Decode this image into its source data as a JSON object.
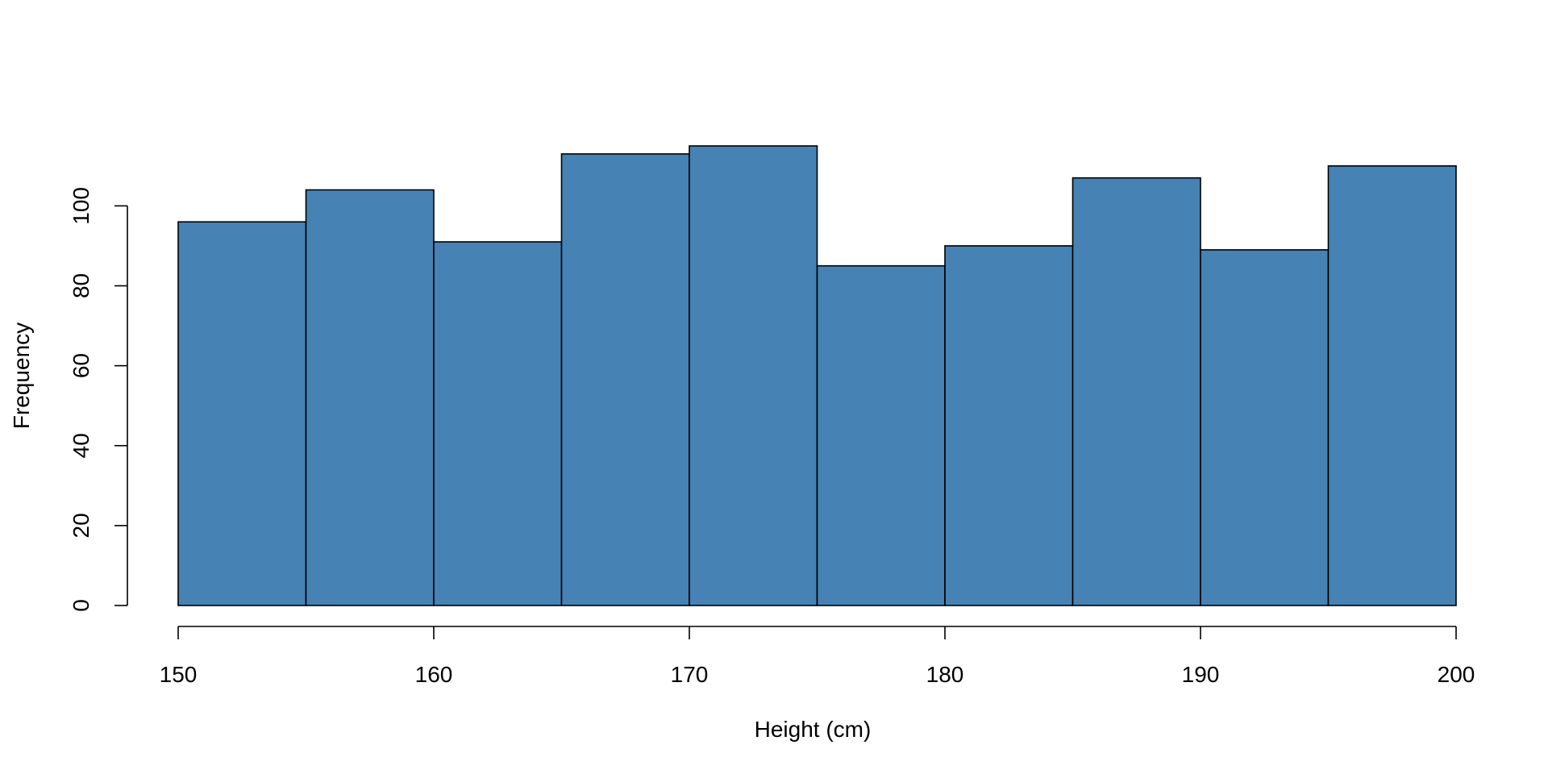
{
  "chart_data": {
    "type": "bar",
    "subtype": "histogram",
    "title": "",
    "xlabel": "Height (cm)",
    "ylabel": "Frequency",
    "bin_edges": [
      150,
      155,
      160,
      165,
      170,
      175,
      180,
      185,
      190,
      195,
      200
    ],
    "values": [
      96,
      104,
      91,
      113,
      115,
      85,
      90,
      107,
      89,
      110
    ],
    "xlim": [
      150,
      200
    ],
    "ylim": [
      0,
      115
    ],
    "x_ticks": [
      150,
      160,
      170,
      180,
      190,
      200
    ],
    "y_ticks": [
      0,
      20,
      40,
      60,
      80,
      100
    ],
    "bar_color": "#4682B4",
    "edge_color": "#000000",
    "grid": false,
    "legend": "none"
  }
}
